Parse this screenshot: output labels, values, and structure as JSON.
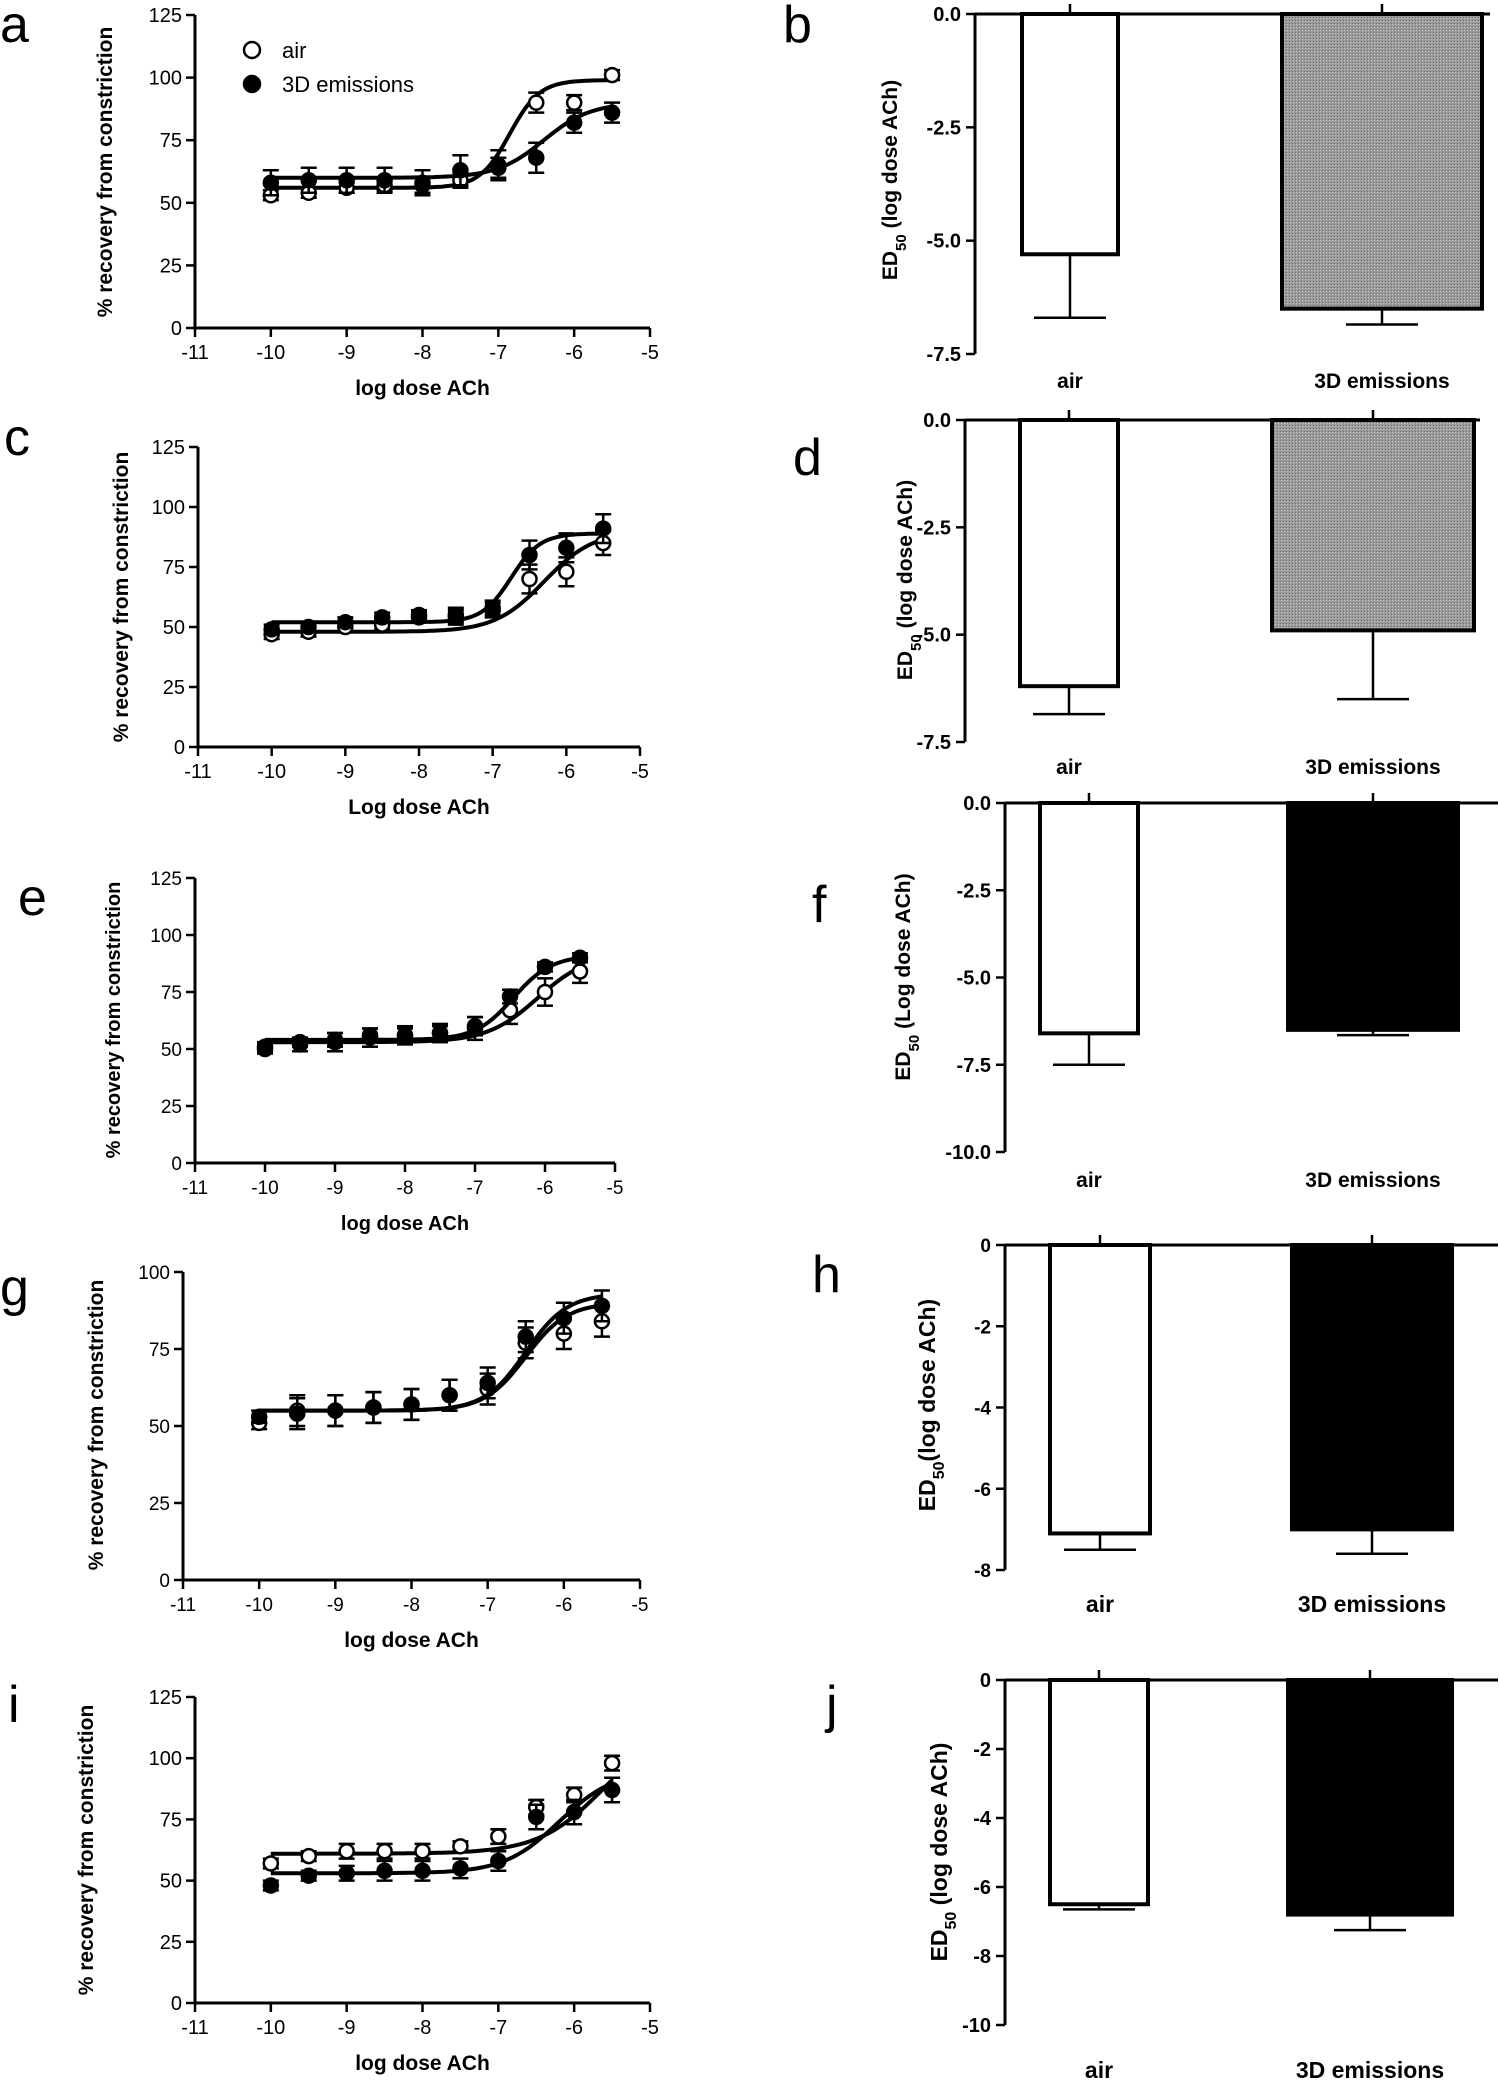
{
  "chart_data": [
    {
      "panel": "a",
      "type": "line",
      "xlabel": "log dose ACh",
      "ylabel": "% recovery from constriction",
      "xlim": [
        -11,
        -5
      ],
      "ylim": [
        0,
        125
      ],
      "xticks": [
        -11,
        -10,
        -9,
        -8,
        -7,
        -6,
        -5
      ],
      "yticks": [
        0,
        25,
        50,
        75,
        100,
        125
      ],
      "legend": {
        "position": "top-left",
        "entries": [
          "air",
          "3D emissions"
        ]
      },
      "series": [
        {
          "name": "air",
          "marker": "open-circle",
          "x": [
            -10,
            -9.5,
            -9,
            -8.5,
            -8,
            -7.5,
            -7,
            -6.5,
            -6,
            -5.5
          ],
          "y": [
            53,
            54,
            56,
            57,
            57,
            59,
            64,
            90,
            90,
            101
          ],
          "err": [
            2,
            2,
            2,
            2,
            3,
            3,
            4,
            4,
            3,
            2
          ],
          "fit": {
            "bottom": 56,
            "top": 99,
            "logec50": -6.85,
            "hill": 2.2
          }
        },
        {
          "name": "3D emissions",
          "marker": "filled-circle",
          "x": [
            -10,
            -9.5,
            -9,
            -8.5,
            -8,
            -7.5,
            -7,
            -6.5,
            -6,
            -5.5
          ],
          "y": [
            58,
            59,
            59,
            59,
            58,
            63,
            65,
            68,
            82,
            86
          ],
          "err": [
            5,
            5,
            5,
            5,
            5,
            6,
            6,
            6,
            4,
            4
          ],
          "fit": {
            "bottom": 60,
            "top": 90,
            "logec50": -6.4,
            "hill": 1.4
          }
        }
      ]
    },
    {
      "panel": "b",
      "type": "bar",
      "xlabel": "",
      "ylabel_main": "ED",
      "ylabel_sub": "50",
      "ylabel_rest": " (log dose ACh)",
      "ylim": [
        -7.5,
        0
      ],
      "yticks": [
        0,
        -2.5,
        -5,
        -7.5
      ],
      "yticklabels": [
        "0.0",
        "-2.5",
        "-5.0",
        "-7.5"
      ],
      "categories": [
        "air",
        "3D emissions"
      ],
      "values": [
        -5.3,
        -6.5
      ],
      "err": [
        1.4,
        0.35
      ],
      "fills": [
        "white",
        "gray"
      ]
    },
    {
      "panel": "c",
      "type": "line",
      "xlabel": "Log dose ACh",
      "ylabel": "% recovery from constriction",
      "xlim": [
        -11,
        -5
      ],
      "ylim": [
        0,
        125
      ],
      "xticks": [
        -11,
        -10,
        -9,
        -8,
        -7,
        -6,
        -5
      ],
      "yticks": [
        0,
        25,
        50,
        75,
        100,
        125
      ],
      "series": [
        {
          "marker": "open-circle",
          "x": [
            -10,
            -9.5,
            -9,
            -8.5,
            -8,
            -7.5,
            -7,
            -6.5,
            -6,
            -5.5
          ],
          "y": [
            47,
            48,
            50,
            51,
            54,
            54,
            57,
            70,
            73,
            85
          ],
          "err": [
            2,
            2,
            2,
            2,
            2,
            3,
            3,
            6,
            6,
            5
          ],
          "fit": {
            "bottom": 48,
            "top": 90,
            "logec50": -6.3,
            "hill": 1.3
          }
        },
        {
          "marker": "filled-circle",
          "x": [
            -10,
            -9.5,
            -9,
            -8.5,
            -8,
            -7.5,
            -7,
            -6.5,
            -6,
            -5.5
          ],
          "y": [
            49,
            50,
            52,
            54,
            55,
            55,
            58,
            80,
            83,
            91
          ],
          "err": [
            2,
            2,
            2,
            2,
            2,
            3,
            3,
            6,
            6,
            6
          ],
          "fit": {
            "bottom": 52,
            "top": 89,
            "logec50": -6.75,
            "hill": 2.2
          }
        }
      ]
    },
    {
      "panel": "d",
      "type": "bar",
      "xlabel": "",
      "ylabel_main": "ED",
      "ylabel_sub": "50",
      "ylabel_rest": " (log dose ACh)",
      "ylim": [
        -7.5,
        0
      ],
      "yticks": [
        0,
        -2.5,
        -5,
        -7.5
      ],
      "yticklabels": [
        "0.0",
        "-2.5",
        "-5.0",
        "-7.5"
      ],
      "categories": [
        "air",
        "3D emissions"
      ],
      "values": [
        -6.2,
        -4.9
      ],
      "err": [
        0.65,
        1.6
      ],
      "fills": [
        "white",
        "gray"
      ]
    },
    {
      "panel": "e",
      "type": "line",
      "xlabel": "log dose ACh",
      "ylabel": "% recovery from constriction",
      "xlim": [
        -11,
        -5
      ],
      "ylim": [
        0,
        125
      ],
      "xticks": [
        -11,
        -10,
        -9,
        -8,
        -7,
        -6,
        -5
      ],
      "yticks": [
        0,
        25,
        50,
        75,
        100,
        125
      ],
      "series": [
        {
          "marker": "open-circle",
          "x": [
            -10,
            -9.5,
            -9,
            -8.5,
            -8,
            -7.5,
            -7,
            -6.5,
            -6,
            -5.5
          ],
          "y": [
            51,
            52,
            53,
            55,
            56,
            57,
            59,
            67,
            75,
            84
          ],
          "err": [
            2,
            3,
            4,
            4,
            4,
            4,
            5,
            6,
            6,
            5
          ],
          "fit": {
            "bottom": 53,
            "top": 92,
            "logec50": -6.1,
            "hill": 1.2
          }
        },
        {
          "marker": "filled-circle",
          "x": [
            -10,
            -9.5,
            -9,
            -8.5,
            -8,
            -7.5,
            -7,
            -6.5,
            -6,
            -5.5
          ],
          "y": [
            50,
            53,
            54,
            56,
            56,
            57,
            60,
            73,
            86,
            90
          ],
          "err": [
            2,
            2,
            3,
            3,
            3,
            3,
            4,
            3,
            2,
            2
          ],
          "fit": {
            "bottom": 54,
            "top": 91,
            "logec50": -6.45,
            "hill": 1.6
          }
        }
      ]
    },
    {
      "panel": "f",
      "type": "bar",
      "xlabel": "",
      "ylabel_main": "ED",
      "ylabel_sub": "50",
      "ylabel_rest": " (Log dose ACh)",
      "ylim": [
        -10,
        0
      ],
      "yticks": [
        0,
        -2.5,
        -5,
        -7.5,
        -10
      ],
      "yticklabels": [
        "0.0",
        "-2.5",
        "-5.0",
        "-7.5",
        "-10.0"
      ],
      "categories": [
        "air",
        "3D emissions"
      ],
      "values": [
        -6.6,
        -6.5
      ],
      "err": [
        0.9,
        0.15
      ],
      "fills": [
        "white",
        "black"
      ]
    },
    {
      "panel": "g",
      "type": "line",
      "xlabel": "log dose ACh",
      "ylabel": "% recovery from constriction",
      "xlim": [
        -11,
        -5
      ],
      "ylim": [
        0,
        100
      ],
      "xticks": [
        -11,
        -10,
        -9,
        -8,
        -7,
        -6,
        -5
      ],
      "yticks": [
        0,
        25,
        50,
        75,
        100
      ],
      "series": [
        {
          "marker": "open-circle",
          "x": [
            -10,
            -9.5,
            -9,
            -8.5,
            -8,
            -7.5,
            -7,
            -6.5,
            -6,
            -5.5
          ],
          "y": [
            51,
            55,
            55,
            56,
            57,
            60,
            62,
            77,
            80,
            84
          ],
          "err": [
            2,
            5,
            5,
            5,
            5,
            5,
            5,
            5,
            5,
            5
          ],
          "fit": {
            "bottom": 55,
            "top": 90,
            "logec50": -6.5,
            "hill": 1.6
          }
        },
        {
          "marker": "filled-circle",
          "x": [
            -10,
            -9.5,
            -9,
            -8.5,
            -8,
            -7.5,
            -7,
            -6.5,
            -6,
            -5.5
          ],
          "y": [
            53,
            54,
            55,
            56,
            57,
            60,
            64,
            79,
            85,
            89
          ],
          "err": [
            2,
            5,
            5,
            5,
            5,
            5,
            5,
            5,
            5,
            5
          ],
          "fit": {
            "bottom": 55,
            "top": 93,
            "logec50": -6.5,
            "hill": 1.6
          }
        }
      ]
    },
    {
      "panel": "h",
      "type": "bar",
      "xlabel": "",
      "ylabel_main": "ED",
      "ylabel_sub": "50",
      "ylabel_rest": "(log dose ACh)",
      "ylim": [
        -8,
        0
      ],
      "yticks": [
        0,
        -2,
        -4,
        -6,
        -8
      ],
      "yticklabels": [
        "0",
        "-2",
        "-4",
        "-6",
        "-8"
      ],
      "categories": [
        "air",
        "3D emissions"
      ],
      "values": [
        -7.1,
        -7.0
      ],
      "err": [
        0.4,
        0.6
      ],
      "fills": [
        "white",
        "black"
      ]
    },
    {
      "panel": "i",
      "type": "line",
      "xlabel": "log dose ACh",
      "ylabel": "% recovery from constriction",
      "xlim": [
        -11,
        -5
      ],
      "ylim": [
        0,
        125
      ],
      "xticks": [
        -11,
        -10,
        -9,
        -8,
        -7,
        -6,
        -5
      ],
      "yticks": [
        0,
        25,
        50,
        75,
        100,
        125
      ],
      "series": [
        {
          "marker": "open-circle",
          "x": [
            -10,
            -9.5,
            -9,
            -8.5,
            -8,
            -7.5,
            -7,
            -6.5,
            -6,
            -5.5
          ],
          "y": [
            57,
            60,
            62,
            62,
            62,
            64,
            68,
            80,
            85,
            98
          ],
          "err": [
            2,
            2,
            3,
            3,
            3,
            2,
            3,
            3,
            3,
            3
          ],
          "fit": {
            "bottom": 61,
            "top": 115,
            "logec50": -5.6,
            "hill": 1.0
          }
        },
        {
          "marker": "filled-circle",
          "x": [
            -10,
            -9.5,
            -9,
            -8.5,
            -8,
            -7.5,
            -7,
            -6.5,
            -6,
            -5.5
          ],
          "y": [
            48,
            52,
            53,
            54,
            54,
            55,
            58,
            76,
            78,
            87
          ],
          "err": [
            2,
            2,
            3,
            4,
            4,
            4,
            4,
            5,
            5,
            5
          ],
          "fit": {
            "bottom": 53,
            "top": 95,
            "logec50": -6.2,
            "hill": 1.2
          }
        }
      ]
    },
    {
      "panel": "j",
      "type": "bar",
      "xlabel": "",
      "ylabel_main": "ED",
      "ylabel_sub": "50",
      "ylabel_rest": " (log dose ACh)",
      "ylim": [
        -10,
        0
      ],
      "yticks": [
        0,
        -2,
        -4,
        -6,
        -8,
        -10
      ],
      "yticklabels": [
        "0",
        "-2",
        "-4",
        "-6",
        "-8",
        "-10"
      ],
      "categories": [
        "air",
        "3D emissions"
      ],
      "values": [
        -6.5,
        -6.8
      ],
      "err": [
        0.15,
        0.45
      ],
      "fills": [
        "white",
        "black"
      ]
    }
  ]
}
